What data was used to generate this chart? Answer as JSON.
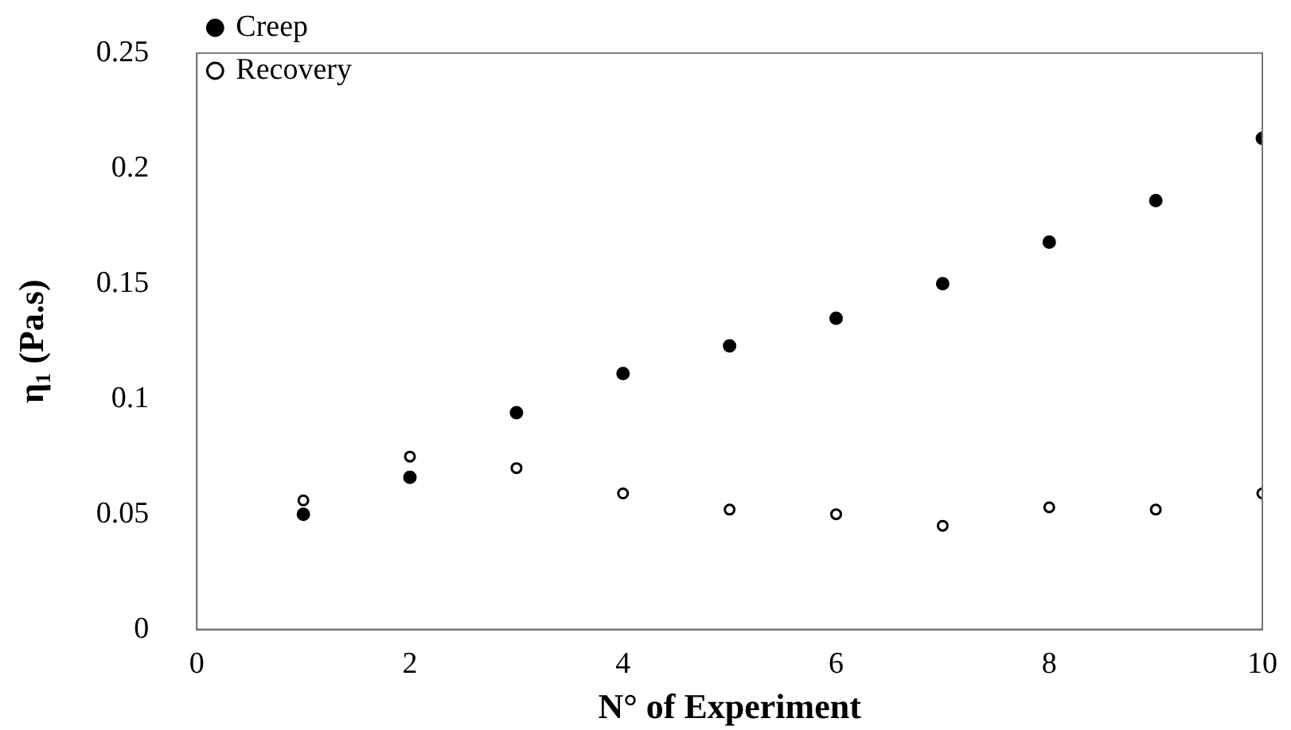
{
  "chart_data": {
    "type": "scatter",
    "xlabel": "N° of Experiment",
    "ylabel": "η₁ (Pa.s)",
    "x": [
      1,
      2,
      3,
      4,
      5,
      6,
      7,
      8,
      9,
      10
    ],
    "series": [
      {
        "name": "Creep",
        "color": "#000000",
        "values": [
          0.05,
          0.066,
          0.094,
          0.111,
          0.123,
          0.135,
          0.15,
          0.168,
          0.186,
          0.213
        ]
      },
      {
        "name": "Recovery",
        "color": "#000000",
        "values": [
          0.056,
          0.075,
          0.07,
          0.059,
          0.052,
          0.05,
          0.045,
          0.053,
          0.052,
          0.059
        ]
      }
    ],
    "xlim": [
      0,
      10
    ],
    "xticks": [
      0,
      2,
      4,
      6,
      8,
      10
    ],
    "ylim": [
      0,
      0.25
    ],
    "yticks": [
      0,
      0.05,
      0.1,
      0.15,
      0.2,
      0.25
    ],
    "grid": false,
    "legend": "top left",
    "marker": "circle"
  }
}
